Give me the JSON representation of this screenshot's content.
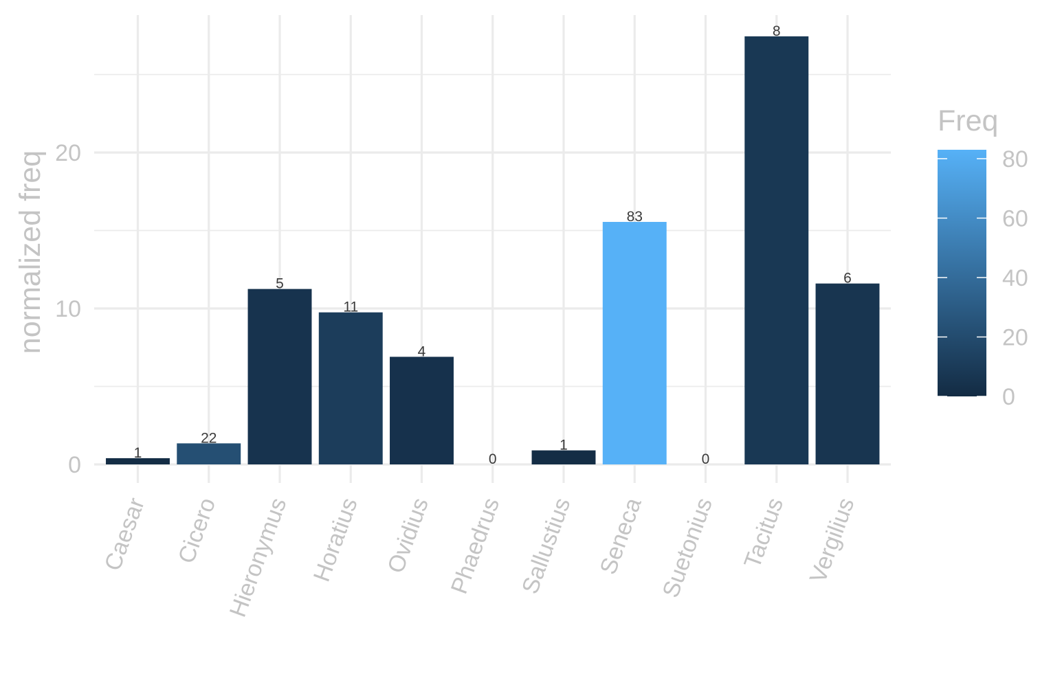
{
  "chart_data": {
    "type": "bar",
    "xlabel": "",
    "ylabel": "normalized freq",
    "ylim": [
      -1.2,
      29
    ],
    "y_ticks": [
      "0",
      "10",
      "20"
    ],
    "y_tick_values": [
      0,
      10,
      20
    ],
    "grid": true,
    "categories": [
      "Caesar",
      "Cicero",
      "Hieronymus",
      "Horatius",
      "Ovidius",
      "Phaedrus",
      "Sallustius",
      "Seneca",
      "Suetonius",
      "Tacitus",
      "Vergilius"
    ],
    "values": [
      0.4,
      1.35,
      11.25,
      9.75,
      6.9,
      0,
      0.9,
      15.55,
      0,
      27.45,
      11.6
    ],
    "freq": [
      1,
      22,
      5,
      11,
      4,
      0,
      1,
      83,
      0,
      8,
      6
    ],
    "bar_labels": [
      "1",
      "22",
      "5",
      "11",
      "4",
      "0",
      "1",
      "83",
      "0",
      "8",
      "6"
    ],
    "legend": {
      "title": "Freq",
      "position": "right",
      "type": "colorbar",
      "min": 0,
      "max": 83,
      "ticks": [
        "0",
        "20",
        "40",
        "60",
        "80"
      ],
      "tick_values": [
        0,
        20,
        40,
        60,
        80
      ],
      "low_color": "#132b43",
      "high_color": "#56b1f7"
    }
  }
}
